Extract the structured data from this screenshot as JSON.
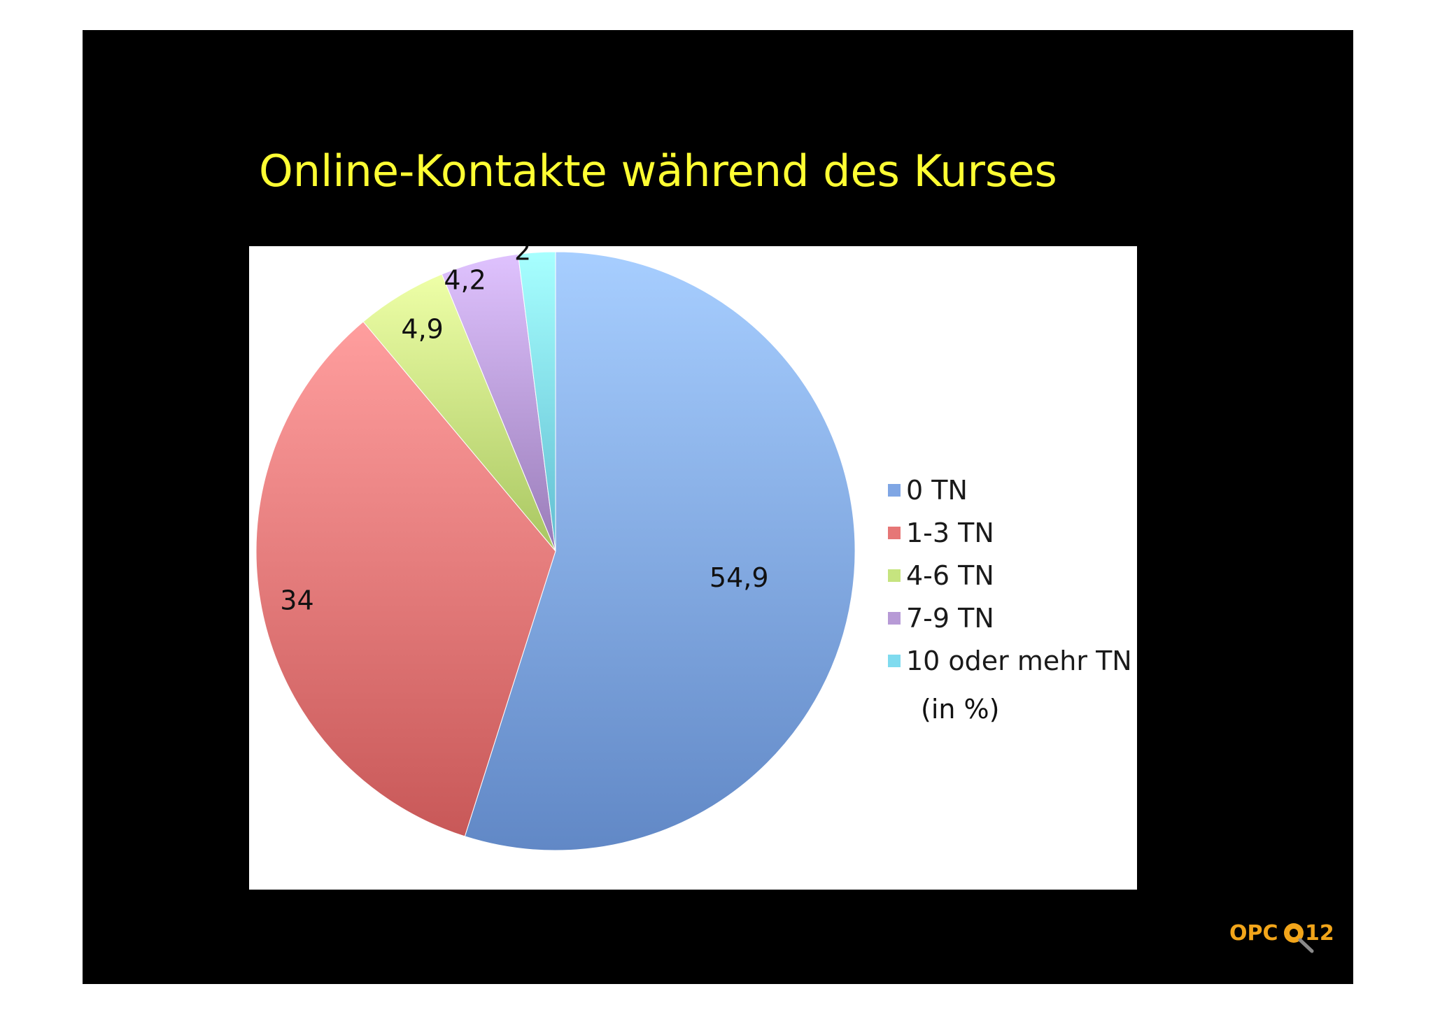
{
  "slide": {
    "title": "Online-Kontakte während des Kurses"
  },
  "chart_data": {
    "type": "pie",
    "categories": [
      "0 TN",
      "1-3 TN",
      "4-6 TN",
      "7-9 TN",
      "10 oder mehr TN"
    ],
    "values": [
      54.9,
      34,
      4.9,
      4.2,
      2
    ],
    "data_labels": [
      "54,9",
      "34",
      "4,9",
      "4,2",
      "2"
    ],
    "colors": [
      "#7fa6e4",
      "#e67676",
      "#c6e47f",
      "#b79ad6",
      "#7fdbef"
    ],
    "unit_note": "(in %)",
    "legend_placement": "right",
    "start_angle": "12-o'clock",
    "direction": "clockwise"
  },
  "logo": {
    "text_left": "OPC",
    "text_right": "12",
    "icon": "magnifier-icon"
  }
}
